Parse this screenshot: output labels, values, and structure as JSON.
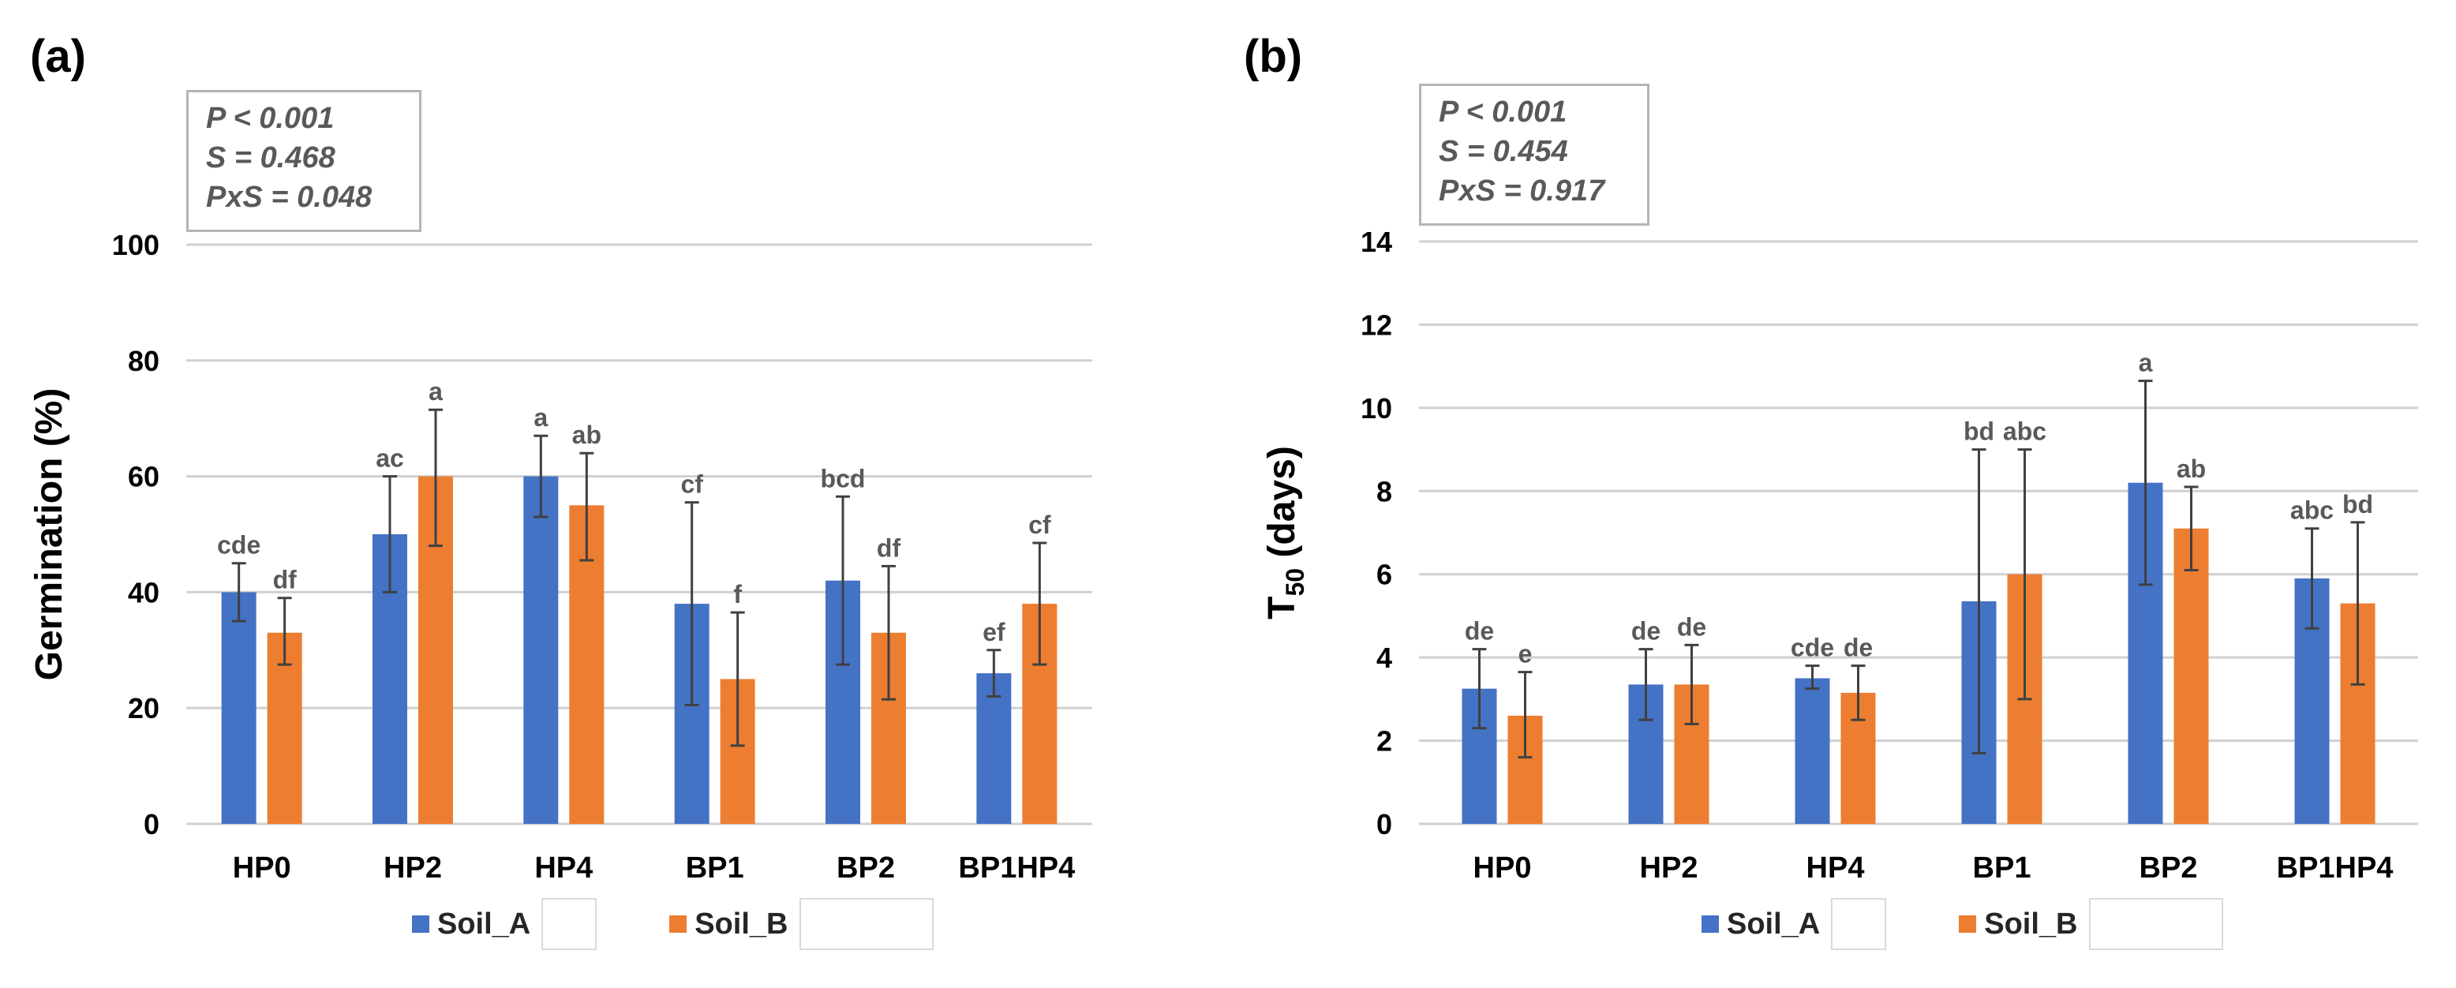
{
  "colors": {
    "series_a": "#4472c4",
    "series_b": "#ed7d31",
    "grid": "#d0d0d0",
    "axis_text": "#000000",
    "letter_text": "#595959",
    "error_bar": "#404040"
  },
  "panels": {
    "a": {
      "label": "(a)",
      "stats": [
        "P < 0.001",
        "S = 0.468",
        "PxS = 0.048"
      ]
    },
    "b": {
      "label": "(b)",
      "stats": [
        "P < 0.001",
        "S = 0.454",
        "PxS = 0.917"
      ]
    }
  },
  "legend": {
    "series_a": "Soil_A",
    "series_b": "Soil_B"
  },
  "chart_data": [
    {
      "type": "bar",
      "title": "",
      "xlabel": "",
      "ylabel": "Germination  (%)",
      "ylim": [
        0,
        100
      ],
      "yticks": [
        0,
        20,
        40,
        60,
        80,
        100
      ],
      "grid": true,
      "legend_position": "bottom",
      "categories": [
        "HP0",
        "HP2",
        "HP4",
        "BP1",
        "BP2",
        "BP1HP4"
      ],
      "series": [
        {
          "name": "Soil_A",
          "values": [
            40,
            50,
            60,
            38,
            42,
            26
          ],
          "err_low": [
            35,
            40,
            53,
            20.5,
            27.5,
            22
          ],
          "err_high": [
            45,
            60,
            67,
            55.5,
            56.5,
            30
          ],
          "letters": [
            "cde",
            "ac",
            "a",
            "cf",
            "bcd",
            "ef"
          ]
        },
        {
          "name": "Soil_B",
          "values": [
            33,
            60,
            55,
            25,
            33,
            38
          ],
          "err_low": [
            27.5,
            48,
            45.5,
            13.5,
            21.5,
            27.5
          ],
          "err_high": [
            39,
            71.5,
            64,
            36.5,
            44.5,
            48.5
          ],
          "letters": [
            "df",
            "a",
            "ab",
            "f",
            "df",
            "cf"
          ]
        }
      ]
    },
    {
      "type": "bar",
      "title": "",
      "xlabel": "",
      "ylabel": "T50 (days)",
      "ylabel_main": "T",
      "ylabel_sub": "50",
      "ylabel_rest": " (days)",
      "ylim": [
        0,
        14
      ],
      "yticks": [
        0,
        2,
        4,
        6,
        8,
        10,
        12,
        14
      ],
      "grid": true,
      "legend_position": "bottom",
      "categories": [
        "HP0",
        "HP2",
        "HP4",
        "BP1",
        "BP2",
        "BP1HP4"
      ],
      "series": [
        {
          "name": "Soil_A",
          "values": [
            3.25,
            3.35,
            3.5,
            5.35,
            8.2,
            5.9
          ],
          "err_low": [
            2.3,
            2.5,
            3.25,
            1.7,
            5.75,
            4.7
          ],
          "err_high": [
            4.2,
            4.2,
            3.8,
            9.0,
            10.65,
            7.1
          ],
          "letters": [
            "de",
            "de",
            "cde",
            "bd",
            "a",
            "abc"
          ]
        },
        {
          "name": "Soil_B",
          "values": [
            2.6,
            3.35,
            3.15,
            6.0,
            7.1,
            5.3
          ],
          "err_low": [
            1.6,
            2.4,
            2.5,
            3.0,
            6.1,
            3.35
          ],
          "err_high": [
            3.65,
            4.3,
            3.8,
            9.0,
            8.1,
            7.25
          ],
          "letters": [
            "e",
            "de",
            "de",
            "abc",
            "ab",
            "bd"
          ]
        }
      ]
    }
  ]
}
